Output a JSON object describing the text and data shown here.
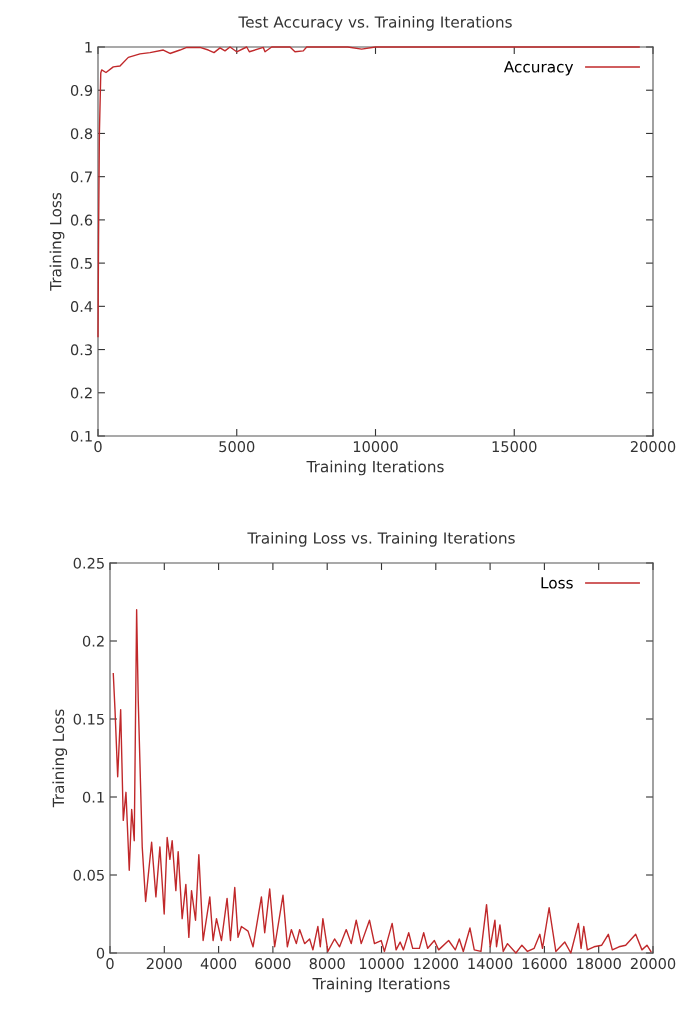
{
  "chart_data": [
    {
      "type": "line",
      "title": "Test Accuracy vs. Training Iterations",
      "xlabel": "Training Iterations",
      "ylabel": "Training Loss",
      "xlim": [
        0,
        20000
      ],
      "ylim": [
        0.1,
        1
      ],
      "xticks": [
        0,
        5000,
        10000,
        15000,
        20000
      ],
      "yticks": [
        0.1,
        0.2,
        0.3,
        0.4,
        0.5,
        0.6,
        0.7,
        0.8,
        0.9,
        1
      ],
      "legend": "top right",
      "grid": false,
      "series": [
        {
          "name": "Accuracy",
          "color": "#c0282a",
          "x": [
            0,
            20,
            50,
            100,
            133,
            288,
            551,
            793,
            1092,
            1514,
            1874,
            2353,
            2595,
            2955,
            3196,
            3676,
            3976,
            4180,
            4396,
            4577,
            4757,
            4998,
            5358,
            5453,
            5957,
            6018,
            6259,
            6919,
            7099,
            7398,
            7520,
            8000,
            9000,
            9500,
            10000,
            11000,
            12000,
            13000,
            14000,
            15000,
            16000,
            17000,
            18000,
            19000,
            19500
          ],
          "values": [
            0.33,
            0.56,
            0.8,
            0.94,
            0.947,
            0.941,
            0.954,
            0.956,
            0.976,
            0.984,
            0.987,
            0.993,
            0.985,
            0.993,
            0.999,
            0.999,
            0.993,
            0.987,
            0.998,
            0.991,
            1.0,
            0.989,
            1.0,
            0.989,
            0.999,
            0.989,
            1.0,
            1.0,
            0.989,
            0.991,
            1.0,
            1.0,
            1.0,
            0.995,
            1.0,
            1.0,
            1.0,
            1.0,
            1.0,
            1.0,
            1.0,
            1.0,
            1.0,
            1.0,
            1.0
          ]
        }
      ]
    },
    {
      "type": "line",
      "title": "Training Loss vs. Training Iterations",
      "xlabel": "Training Iterations",
      "ylabel": "Training Loss",
      "xlim": [
        0,
        20000
      ],
      "ylim": [
        0,
        0.25
      ],
      "xticks": [
        0,
        2000,
        4000,
        6000,
        8000,
        10000,
        12000,
        14000,
        16000,
        18000,
        20000
      ],
      "yticks": [
        0,
        0.05,
        0.1,
        0.15,
        0.2,
        0.25
      ],
      "legend": "top right",
      "grid": false,
      "series": [
        {
          "name": "Loss",
          "color": "#c0282a",
          "x": [
            121,
            184,
            283,
            393,
            489,
            588,
            709,
            798,
            893,
            981,
            1040,
            1187,
            1312,
            1533,
            1691,
            1838,
            1996,
            2106,
            2206,
            2290,
            2426,
            2511,
            2658,
            2794,
            2904,
            3003,
            3150,
            3272,
            3430,
            3676,
            3797,
            3922,
            4106,
            4312,
            4437,
            4595,
            4716,
            4841,
            5084,
            5268,
            5577,
            5698,
            5882,
            6065,
            6371,
            6532,
            6679,
            6863,
            6985,
            7168,
            7352,
            7473,
            7657,
            7745,
            7841,
            8025,
            8271,
            8455,
            8701,
            8885,
            9069,
            9253,
            9558,
            9741,
            9988,
            10109,
            10392,
            10539,
            10686,
            10807,
            11002,
            11149,
            11396,
            11554,
            11701,
            11947,
            12105,
            12473,
            12719,
            12866,
            13013,
            13259,
            13417,
            13664,
            13869,
            14005,
            14178,
            14237,
            14362,
            14483,
            14641,
            14950,
            15171,
            15377,
            15623,
            15833,
            15929,
            16174,
            16421,
            16752,
            16973,
            17252,
            17351,
            17450,
            17582,
            17829,
            18112,
            18354,
            18502,
            18748,
            18994,
            19362,
            19593,
            19777,
            19924
          ],
          "values": [
            0.179,
            0.156,
            0.113,
            0.156,
            0.085,
            0.103,
            0.053,
            0.092,
            0.072,
            0.22,
            0.162,
            0.068,
            0.033,
            0.071,
            0.036,
            0.068,
            0.025,
            0.074,
            0.06,
            0.072,
            0.04,
            0.065,
            0.022,
            0.044,
            0.01,
            0.04,
            0.021,
            0.063,
            0.008,
            0.036,
            0.008,
            0.022,
            0.008,
            0.035,
            0.008,
            0.042,
            0.01,
            0.017,
            0.014,
            0.004,
            0.036,
            0.013,
            0.041,
            0.004,
            0.037,
            0.004,
            0.015,
            0.006,
            0.015,
            0.006,
            0.009,
            0.002,
            0.017,
            0.004,
            0.022,
            0.001,
            0.009,
            0.004,
            0.015,
            0.006,
            0.021,
            0.006,
            0.021,
            0.006,
            0.008,
            0.001,
            0.019,
            0.002,
            0.007,
            0.002,
            0.013,
            0.003,
            0.003,
            0.013,
            0.003,
            0.008,
            0.002,
            0.008,
            0.002,
            0.009,
            0.001,
            0.016,
            0.002,
            0.001,
            0.031,
            0.004,
            0.021,
            0.004,
            0.018,
            0.001,
            0.006,
            0.0,
            0.005,
            0.001,
            0.003,
            0.012,
            0.003,
            0.029,
            0.001,
            0.007,
            0.0,
            0.019,
            0.003,
            0.017,
            0.002,
            0.004,
            0.005,
            0.012,
            0.002,
            0.004,
            0.005,
            0.012,
            0.002,
            0.005,
            0.001
          ]
        }
      ]
    }
  ]
}
